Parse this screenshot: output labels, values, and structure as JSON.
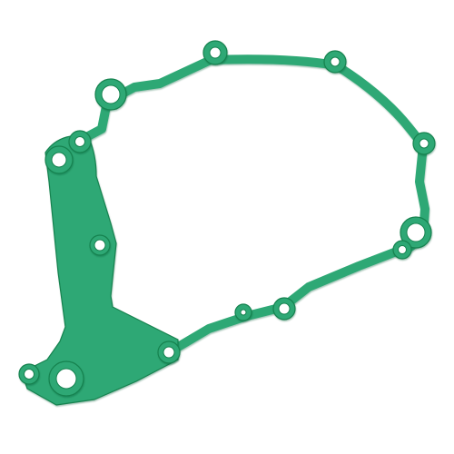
{
  "image": {
    "subject": "gasket-photo",
    "background_color": "#ffffff",
    "gasket": {
      "body_color": "#2ea874",
      "edge_color": "#15824f",
      "hole_color": "#ffffff",
      "bolt_hole_count": 14
    }
  }
}
